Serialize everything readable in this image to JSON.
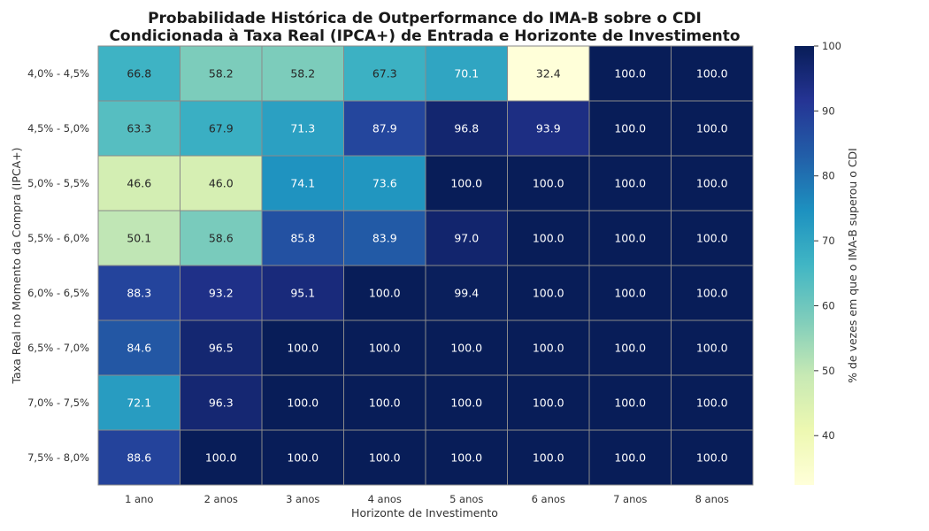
{
  "chart_data": {
    "type": "heatmap",
    "title_lines": [
      "Probabilidade Histórica de Outperformance do IMA-B sobre o CDI",
      "Condicionada à Taxa Real (IPCA+) de Entrada e Horizonte de Investimento"
    ],
    "xlabel": "Horizonte de Investimento",
    "ylabel": "Taxa Real no Momento da Compra (IPCA+)",
    "x_categories": [
      "1 ano",
      "2 anos",
      "3 anos",
      "4 anos",
      "5 anos",
      "6 anos",
      "7 anos",
      "8 anos"
    ],
    "y_categories": [
      "4,0% - 4,5%",
      "4,5% - 5,0%",
      "5,0% - 5,5%",
      "5,5% - 6,0%",
      "6,0% - 6,5%",
      "6,5% - 7,0%",
      "7,0% - 7,5%",
      "7,5% - 8,0%"
    ],
    "values": [
      [
        66.8,
        58.2,
        58.2,
        67.3,
        70.1,
        32.4,
        100.0,
        100.0
      ],
      [
        63.3,
        67.9,
        71.3,
        87.9,
        96.8,
        93.9,
        100.0,
        100.0
      ],
      [
        46.6,
        46.0,
        74.1,
        73.6,
        100.0,
        100.0,
        100.0,
        100.0
      ],
      [
        50.1,
        58.6,
        85.8,
        83.9,
        97.0,
        100.0,
        100.0,
        100.0
      ],
      [
        88.3,
        93.2,
        95.1,
        100.0,
        99.4,
        100.0,
        100.0,
        100.0
      ],
      [
        84.6,
        96.5,
        100.0,
        100.0,
        100.0,
        100.0,
        100.0,
        100.0
      ],
      [
        72.1,
        96.3,
        100.0,
        100.0,
        100.0,
        100.0,
        100.0,
        100.0
      ],
      [
        88.6,
        100.0,
        100.0,
        100.0,
        100.0,
        100.0,
        100.0,
        100.0
      ]
    ],
    "colorbar": {
      "label": "% de vezes em que o IMA-B superou o CDI",
      "colormap": "YlGnBu",
      "vmin": 32.4,
      "vmax": 100,
      "ticks": [
        40,
        50,
        60,
        70,
        80,
        90,
        100
      ]
    },
    "grid": true
  }
}
